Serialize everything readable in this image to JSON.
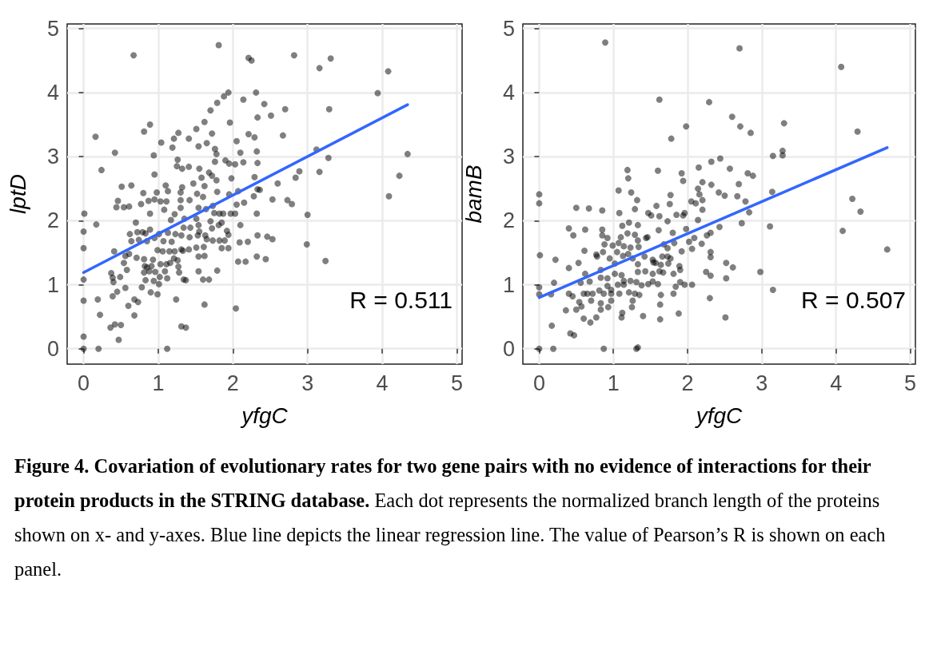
{
  "chart_data": [
    {
      "type": "scatter",
      "title": "Figure 4. Covariation of evolutionary rates for two gene pairs with no evidence of interactions for their protein products in the STRING database.",
      "subtitle": "Each dot represents the normalized branch length of the proteins shown on x- and y-axes. Blue line depicts the linear regression line. The value of Pearson’s R is shown on each panel.",
      "xlabel": "yfgC",
      "ylabel": "lptD",
      "xlim": [
        -0.22,
        5.07
      ],
      "ylim": [
        -0.24,
        5.07
      ],
      "xticks": [
        0,
        1,
        2,
        3,
        4,
        5
      ],
      "yticks": [
        0,
        1,
        2,
        3,
        4,
        5
      ],
      "grid": true,
      "annotations": [
        "R = 0.511"
      ],
      "series": [
        {
          "marker": "circle",
          "color": "#000000",
          "x": [
            1.81,
            0.67,
            2.21,
            2.25,
            2.82,
            3.31,
            3.16,
            4.08,
            3.94,
            3.29,
            2.51,
            2.7,
            2.31,
            1.94,
            1.88,
            1.79,
            2.14,
            2.42,
            2.33,
            1.7,
            1.62,
            1.96,
            0.89,
            0.81,
            0.16,
            1.51,
            1.27,
            1.21,
            1.19,
            1.41,
            1.04,
            1.72,
            1.65,
            1.54,
            1.76,
            1.78,
            2.05,
            2.21,
            2.29,
            2.67,
            2.32,
            2.33,
            2.1,
            0.42,
            0.94,
            3.12,
            3.28,
            4.34,
            4.23,
            4.09,
            3.16,
            2.89,
            2.84,
            2.6,
            2.29,
            2.33,
            2.36,
            2.14,
            1.76,
            1.9,
            1.95,
            2.03,
            1.98,
            0.24,
            1.26,
            1.25,
            1.32,
            1.41,
            1.55,
            1.68,
            1.72,
            1.78,
            1.47,
            1.58,
            1.62,
            0.95,
            0.51,
            0.64,
            1.1,
            1.13,
            0.98,
            1.32,
            1.3,
            0.8,
            1.52,
            1.79,
            1.95,
            2.07,
            0.46,
            0.44,
            0.54,
            0.61,
            0.77,
            0.87,
            0.95,
            1.03,
            1.11,
            1.3,
            1.42,
            1.6,
            2.53,
            2.73,
            2.79,
            2.15,
            2.05,
            2.28,
            0.01,
            0.17,
            0.7,
            0.89,
            1.08,
            1.3,
            1.22,
            1.54,
            1.64,
            1.73,
            1.82,
            1.75,
            1.87,
            1.97,
            2.03,
            2.32,
            3.0,
            2.1,
            1.17,
            1.35,
            1.51,
            1.7,
            1.85,
            1.81,
            0.62,
            0.72,
            0.79,
            0.83,
            0.89,
            1.01,
            1.13,
            1.23,
            1.34,
            1.43,
            1.54,
            1.55,
            1.63,
            1.72,
            1.92,
            1.94,
            0.64,
            0.74,
            0.85,
            0.95,
            1.07,
            1.18,
            1.31,
            1.42,
            1.53,
            1.65,
            1.73,
            1.82,
            1.89,
            2.09,
            2.2,
            2.33,
            2.46,
            2.53,
            2.99,
            0.41,
            0.56,
            0.61,
            0.71,
            0.81,
            0.93,
            0.99,
            1.06,
            1.15,
            1.22,
            1.31,
            1.33,
            1.41,
            1.51,
            1.61,
            1.85,
            1.94,
            1.54,
            1.62,
            1.21,
            1.26,
            0.54,
            0.58,
            0.82,
            0.85,
            0.91,
            1.03,
            1.11,
            1.16,
            1.27,
            2.07,
            2.17,
            2.32,
            2.44,
            3.24,
            0.37,
            0.39,
            0.4,
            0.49,
            0.81,
            0.88,
            0.96,
            1.02,
            1.09,
            1.12,
            1.28,
            1.34,
            1.37,
            1.54,
            1.6,
            1.68,
            1.79,
            0.83,
            0.94,
            0.0,
            0.56,
            0.45,
            0.39,
            0.78,
            0.9,
            0.99,
            1.01,
            0.0,
            0.19,
            0.68,
            0.73,
            0.6,
            0.68,
            0.22,
            1.24,
            1.62,
            2.04,
            0.36,
            0.42,
            0.5,
            0.47,
            1.31,
            1.37,
            0.0,
            0.0,
            0.2,
            1.12,
            0.0,
            0.0
          ],
          "values": [
            4.74,
            4.58,
            4.54,
            4.5,
            4.58,
            4.53,
            4.38,
            4.33,
            3.99,
            3.74,
            3.64,
            3.74,
            4.0,
            4.0,
            3.94,
            3.84,
            3.89,
            3.82,
            3.61,
            3.72,
            3.54,
            3.53,
            3.5,
            3.39,
            3.31,
            3.43,
            3.37,
            3.28,
            3.14,
            3.28,
            3.22,
            3.36,
            3.21,
            3.16,
            3.12,
            3.04,
            3.24,
            3.35,
            3.3,
            3.33,
            3.08,
            2.9,
            3.06,
            3.06,
            3.02,
            3.11,
            2.98,
            3.04,
            2.7,
            2.38,
            2.76,
            2.77,
            2.67,
            2.58,
            2.68,
            2.49,
            2.48,
            2.91,
            2.92,
            2.94,
            2.89,
            2.88,
            2.66,
            2.79,
            2.95,
            2.85,
            2.81,
            2.84,
            2.81,
            2.75,
            2.7,
            2.63,
            2.58,
            2.67,
            2.54,
            2.72,
            2.53,
            2.55,
            2.55,
            2.46,
            2.44,
            2.52,
            2.44,
            2.43,
            2.42,
            2.45,
            2.41,
            2.46,
            2.31,
            2.21,
            2.21,
            2.22,
            2.26,
            2.31,
            2.33,
            2.3,
            2.3,
            2.32,
            2.32,
            2.37,
            2.33,
            2.32,
            2.26,
            2.28,
            2.25,
            2.38,
            2.11,
            1.94,
            1.97,
            2.11,
            2.17,
            2.2,
            2.1,
            2.2,
            2.18,
            2.23,
            2.11,
            2.12,
            2.11,
            2.11,
            2.11,
            2.11,
            2.09,
            1.93,
            2.01,
            2.03,
            2.03,
            1.99,
            1.97,
            1.93,
            1.79,
            1.82,
            1.82,
            1.8,
            1.86,
            1.79,
            1.81,
            1.79,
            1.89,
            1.89,
            1.93,
            1.83,
            1.77,
            1.88,
            1.84,
            1.78,
            1.68,
            1.7,
            1.68,
            1.73,
            1.68,
            1.67,
            1.77,
            1.74,
            1.77,
            1.71,
            1.69,
            1.69,
            1.69,
            1.66,
            1.67,
            1.77,
            1.75,
            1.71,
            1.63,
            1.52,
            1.45,
            1.48,
            1.42,
            1.4,
            1.39,
            1.54,
            1.52,
            1.52,
            1.52,
            1.55,
            1.53,
            1.55,
            1.58,
            1.59,
            1.57,
            1.57,
            1.44,
            1.45,
            1.41,
            1.38,
            1.34,
            1.23,
            1.29,
            1.27,
            1.29,
            1.32,
            1.32,
            1.34,
            1.28,
            1.36,
            1.36,
            1.44,
            1.4,
            1.37,
            1.18,
            1.11,
            1.04,
            1.12,
            1.19,
            1.21,
            1.2,
            1.12,
            1.21,
            1.1,
            1.19,
            1.08,
            1.07,
            1.21,
            1.08,
            1.08,
            1.22,
            1.07,
            1.06,
            1.08,
            0.95,
            0.89,
            0.82,
            0.96,
            0.88,
            0.85,
            1.01,
            0.75,
            0.77,
            0.77,
            0.73,
            0.67,
            0.52,
            0.53,
            0.77,
            0.69,
            0.63,
            0.33,
            0.38,
            0.37,
            0.14,
            0.35,
            0.33,
            0.19,
            0.0,
            0.0,
            0.0,
            1.83,
            1.57
          ]
        },
        {
          "type": "line",
          "marker": "none",
          "color": "#3366ff",
          "x": [
            0,
            4.34
          ],
          "values": [
            1.19,
            3.81
          ]
        }
      ]
    },
    {
      "type": "scatter",
      "xlabel": "yfgC",
      "ylabel": "bamB",
      "xlim": [
        -0.22,
        5.07
      ],
      "ylim": [
        -0.24,
        5.07
      ],
      "xticks": [
        0,
        1,
        2,
        3,
        4,
        5
      ],
      "yticks": [
        0,
        1,
        2,
        3,
        4,
        5
      ],
      "grid": true,
      "annotations": [
        "R = 0.507"
      ],
      "series": [
        {
          "marker": "circle",
          "color": "#000000",
          "x": [
            0.89,
            2.7,
            4.07,
            1.62,
            2.29,
            2.6,
            2.71,
            2.85,
            1.98,
            1.78,
            3.3,
            4.29,
            3.28,
            3.28,
            3.15,
            2.44,
            2.32,
            2.15,
            2.57,
            2.81,
            2.88,
            1.19,
            1.2,
            1.6,
            1.92,
            1.94,
            2.2,
            2.32,
            2.69,
            2.14,
            2.16,
            2.2,
            2.11,
            2.05,
            2.42,
            2.5,
            2.67,
            2.78,
            2.83,
            3.14,
            4.22,
            4.33,
            4.09,
            4.69,
            0,
            0,
            1.07,
            1.24,
            1.32,
            1.77,
            1.76,
            0.5,
            0.67,
            0.85,
            1.08,
            1.29,
            1.47,
            1.51,
            1.62,
            1.58,
            1.85,
            1.94,
            1.96,
            2.2,
            1.73,
            2.14,
            1.21,
            1.33,
            1.12,
            1.61,
            1.8,
            1.98,
            2.43,
            2.73,
            3.11,
            2.31,
            2.26,
            0.4,
            0.62,
            0.85,
            0.46,
            0.85,
            0.92,
            1.1,
            1.19,
            1.29,
            1.33,
            1.44,
            1.46,
            0.88,
            0.99,
            1.07,
            1.14,
            1.23,
            1.34,
            1.68,
            1.73,
            1.82,
            2.02,
            2.09,
            2.19,
            2.06,
            2.31,
            2.31,
            1.92,
            0.61,
            0.01,
            0.22,
            0.77,
            0.78,
            0.86,
            0.95,
            1.05,
            1.13,
            1.2,
            1.26,
            1.33,
            1.42,
            1.53,
            1.54,
            1.57,
            1.66,
            1.73,
            1.77,
            0.53,
            0.4,
            0.83,
            1.02,
            1.64,
            1.74,
            1.89,
            1.9,
            1.81,
            2.25,
            2.31,
            2.52,
            2.61,
            2.52,
            2.98,
            0.62,
            0.68,
            0.83,
            0.92,
            1.02,
            1.11,
            1.14,
            1.23,
            1.31,
            1.33,
            1.43,
            1.53,
            1.62,
            1.67,
            0.56,
            0.2,
            0,
            0,
            0.16,
            0.92,
            0.97,
            1.06,
            1.14,
            1.38,
            1.47,
            1.53,
            1.6,
            1.9,
            1.96,
            2.06,
            1.84,
            0.4,
            0.45,
            0.6,
            0.65,
            0.72,
            0.81,
            0.87,
            0.97,
            1.08,
            1.21,
            1.29,
            1.35,
            1.26,
            1.25,
            1.64,
            1.81,
            3.15,
            0.54,
            0.7,
            0.83,
            0.97,
            0.93,
            0.83,
            2.3,
            0.36,
            0.5,
            0.57,
            0.77,
            0.6,
            0.69,
            1.12,
            1.11,
            1.4,
            1.63,
            1.63,
            1.88,
            2.51,
            0.17,
            0.42,
            0.47,
            0,
            0.19,
            0.87,
            1.31,
            1.33
          ],
          "values": [
            4.78,
            4.69,
            4.4,
            3.89,
            3.85,
            3.62,
            3.47,
            3.37,
            3.47,
            3.28,
            3.52,
            3.39,
            3.09,
            3.02,
            3.01,
            2.97,
            2.92,
            2.83,
            2.81,
            2.74,
            2.7,
            2.79,
            2.66,
            2.78,
            2.74,
            2.62,
            2.6,
            2.56,
            2.57,
            2.5,
            2.41,
            2.32,
            2.27,
            2.3,
            2.44,
            2.39,
            2.38,
            2.3,
            2.13,
            2.45,
            2.34,
            2.14,
            1.84,
            1.55,
            2.41,
            2.27,
            2.47,
            2.44,
            2.32,
            2.4,
            2.26,
            2.2,
            2.19,
            2.16,
            2.12,
            2.18,
            2.12,
            2.08,
            2.07,
            2.23,
            2.09,
            2.08,
            2.12,
            2.17,
            1.99,
            2.01,
            1.97,
            1.93,
            1.92,
            1.85,
            1.81,
            1.87,
            1.9,
            1.96,
            1.91,
            1.81,
            1.77,
            1.88,
            1.86,
            1.86,
            1.77,
            1.77,
            1.73,
            1.74,
            1.8,
            1.78,
            1.69,
            1.73,
            1.74,
            1.63,
            1.61,
            1.65,
            1.6,
            1.58,
            1.59,
            1.63,
            1.57,
            1.65,
            1.67,
            1.73,
            1.64,
            1.56,
            1.51,
            1.43,
            1.52,
            1.53,
            1.46,
            1.39,
            1.47,
            1.44,
            1.51,
            1.41,
            1.51,
            1.45,
            1.48,
            1.41,
            1.32,
            1.44,
            1.39,
            1.35,
            1.34,
            1.44,
            1.44,
            1.41,
            1.34,
            1.26,
            1.23,
            1.33,
            1.31,
            1.33,
            1.29,
            1.23,
            1.17,
            1.2,
            1.14,
            1.34,
            1.27,
            1.1,
            1.2,
            1.17,
            1.05,
            1.11,
            1.1,
            1.17,
            1.15,
            1.06,
            1.06,
            1.04,
            1.2,
            1.21,
            1.17,
            1.21,
            1.19,
            1.03,
            1.03,
            0.96,
            0.85,
            0.85,
            0.98,
            0.92,
            1.0,
            1.0,
            0.99,
            1.01,
            1.05,
            1.01,
            1.04,
            1.0,
            1.0,
            0.97,
            0.86,
            0.82,
            0.86,
            0.86,
            0.86,
            0.91,
            0.86,
            0.86,
            0.86,
            0.88,
            0.86,
            0.84,
            0.75,
            0.65,
            0.84,
            0.86,
            0.92,
            0.73,
            0.75,
            0.71,
            0.75,
            0.65,
            0.61,
            0.79,
            0.6,
            0.61,
            0.66,
            0.49,
            0.47,
            0.41,
            0.56,
            0.49,
            0.51,
            0.69,
            0.46,
            0.55,
            0.49,
            0.36,
            0.24,
            0.21,
            0,
            0,
            0,
            0,
            0.02
          ]
        },
        {
          "type": "line",
          "marker": "none",
          "color": "#3366ff",
          "x": [
            0,
            4.69
          ],
          "values": [
            0.8,
            3.14
          ]
        }
      ]
    }
  ]
}
